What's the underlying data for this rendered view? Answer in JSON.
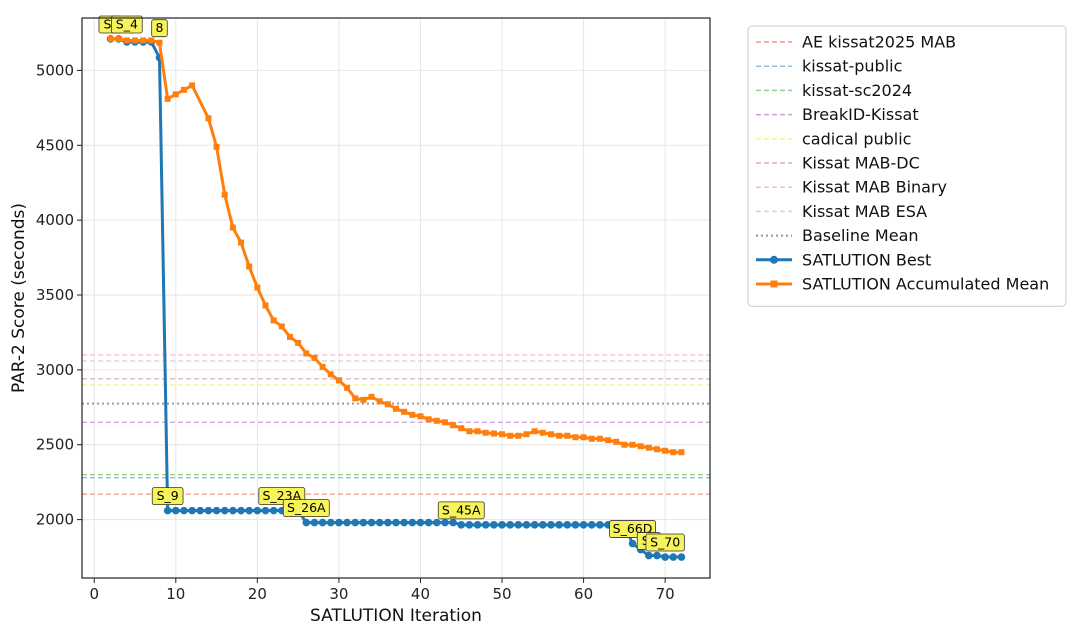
{
  "chart_data": {
    "type": "line",
    "xlabel": "SATLUTION Iteration",
    "ylabel": "PAR-2 Score (seconds)",
    "xlim": [
      -1.5,
      75.5
    ],
    "ylim": [
      1610,
      5350
    ],
    "x_ticks": [
      0,
      10,
      20,
      30,
      40,
      50,
      60,
      70
    ],
    "y_ticks": [
      2000,
      2500,
      3000,
      3500,
      4000,
      4500,
      5000
    ],
    "grid": true,
    "legend_position": "outside right",
    "reference_lines": [
      {
        "name": "AE kissat2025 MAB",
        "y": 2170,
        "color": "#e8998d"
      },
      {
        "name": "kissat-public",
        "y": 2280,
        "color": "#8ec0dc"
      },
      {
        "name": "kissat-sc2024",
        "y": 2300,
        "color": "#93d193"
      },
      {
        "name": "BreakID-Kissat",
        "y": 2650,
        "color": "#c9a0d6"
      },
      {
        "name": "cadical public",
        "y": 2900,
        "color": "#f2f2a0"
      },
      {
        "name": "Kissat MAB-DC",
        "y": 2940,
        "color": "#d8b4a8"
      },
      {
        "name": "Kissat MAB Binary",
        "y": 3100,
        "color": "#f4b9d4"
      },
      {
        "name": "Kissat MAB ESA",
        "y": 3060,
        "color": "#d3d3d3"
      },
      {
        "name": "Baseline Mean",
        "y": 2775,
        "color": "#9e9e9e"
      }
    ],
    "series": [
      {
        "name": "SATLUTION Best",
        "color": "#1f77b4",
        "marker": "circle",
        "x": [
          2,
          3,
          4,
          5,
          6,
          7,
          8,
          9,
          10,
          11,
          12,
          13,
          14,
          15,
          16,
          17,
          18,
          19,
          20,
          21,
          22,
          23,
          24,
          25,
          26,
          27,
          28,
          29,
          30,
          31,
          32,
          33,
          34,
          35,
          36,
          37,
          38,
          39,
          40,
          41,
          42,
          43,
          44,
          45,
          46,
          47,
          48,
          49,
          50,
          51,
          52,
          53,
          54,
          55,
          56,
          57,
          58,
          59,
          60,
          61,
          62,
          63,
          64,
          65,
          66,
          67,
          68,
          69,
          70,
          71,
          72
        ],
        "values": [
          5210,
          5210,
          5190,
          5190,
          5190,
          5190,
          5085,
          2060,
          2060,
          2060,
          2060,
          2060,
          2060,
          2060,
          2060,
          2060,
          2060,
          2060,
          2060,
          2060,
          2060,
          2060,
          2060,
          2060,
          1980,
          1980,
          1980,
          1980,
          1980,
          1980,
          1980,
          1980,
          1980,
          1980,
          1980,
          1980,
          1980,
          1980,
          1980,
          1980,
          1980,
          1980,
          1980,
          1965,
          1965,
          1965,
          1965,
          1965,
          1965,
          1965,
          1965,
          1965,
          1965,
          1965,
          1965,
          1965,
          1965,
          1965,
          1965,
          1965,
          1965,
          1965,
          1965,
          1965,
          1840,
          1800,
          1760,
          1760,
          1750,
          1750,
          1750
        ]
      },
      {
        "name": "SATLUTION Accumulated Mean",
        "color": "#ff7f0e",
        "marker": "square",
        "x": [
          2,
          3,
          4,
          5,
          6,
          7,
          8,
          9,
          10,
          11,
          12,
          14,
          15,
          16,
          17,
          18,
          19,
          20,
          21,
          22,
          23,
          24,
          25,
          26,
          27,
          28,
          29,
          30,
          31,
          32,
          33,
          34,
          35,
          36,
          37,
          38,
          39,
          40,
          41,
          42,
          43,
          44,
          45,
          46,
          47,
          48,
          49,
          50,
          51,
          52,
          53,
          54,
          55,
          56,
          57,
          58,
          59,
          60,
          61,
          62,
          63,
          64,
          65,
          66,
          67,
          68,
          69,
          70,
          71,
          72
        ],
        "values": [
          5210,
          5210,
          5200,
          5200,
          5200,
          5200,
          5185,
          4810,
          4840,
          4870,
          4900,
          4680,
          4490,
          4170,
          3950,
          3850,
          3690,
          3550,
          3430,
          3330,
          3290,
          3220,
          3180,
          3110,
          3080,
          3020,
          2970,
          2930,
          2880,
          2810,
          2800,
          2820,
          2790,
          2770,
          2740,
          2720,
          2700,
          2690,
          2670,
          2660,
          2650,
          2630,
          2610,
          2590,
          2590,
          2580,
          2575,
          2570,
          2560,
          2560,
          2570,
          2590,
          2580,
          2570,
          2560,
          2560,
          2550,
          2550,
          2540,
          2540,
          2530,
          2520,
          2500,
          2500,
          2490,
          2480,
          2470,
          2460,
          2450,
          2450
        ]
      }
    ],
    "annotations": [
      {
        "text": "S_",
        "x": 2,
        "y": 5210
      },
      {
        "text": "S_4",
        "x": 4,
        "y": 5210
      },
      {
        "text": "8",
        "x": 8,
        "y": 5185
      },
      {
        "text": "S_9",
        "x": 9,
        "y": 2060
      },
      {
        "text": "S_23A",
        "x": 23,
        "y": 2060
      },
      {
        "text": "S_26A",
        "x": 26,
        "y": 1980
      },
      {
        "text": "S_45A",
        "x": 45,
        "y": 1965
      },
      {
        "text": "S_66D",
        "x": 66,
        "y": 1840
      },
      {
        "text": "S_",
        "x": 68,
        "y": 1760
      },
      {
        "text": "S_70",
        "x": 70,
        "y": 1750
      }
    ]
  }
}
